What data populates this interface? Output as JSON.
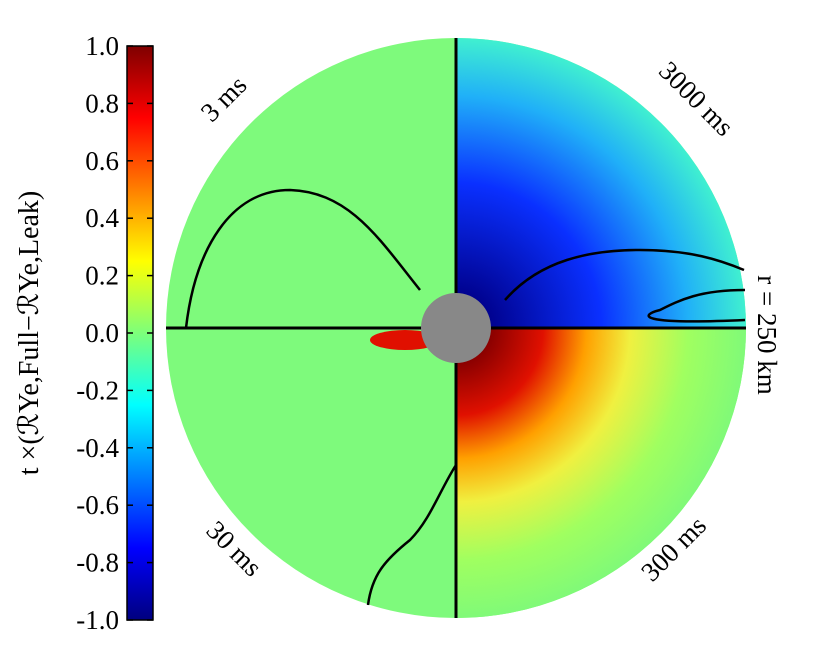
{
  "chart_data": {
    "type": "polar-map",
    "colorbar_label": "t ×(ℛYe,Full−ℛYe,Leak)",
    "clim": [
      -1.0,
      1.0
    ],
    "cticks": [
      {
        "value": 1.0,
        "label": "1.0"
      },
      {
        "value": 0.8,
        "label": "0.8"
      },
      {
        "value": 0.6,
        "label": "0.6"
      },
      {
        "value": 0.4,
        "label": "0.4"
      },
      {
        "value": 0.2,
        "label": "0.2"
      },
      {
        "value": 0.0,
        "label": "0.0"
      },
      {
        "value": -0.2,
        "label": "-0.2"
      },
      {
        "value": -0.4,
        "label": "-0.4"
      },
      {
        "value": -0.6,
        "label": "-0.6"
      },
      {
        "value": -0.8,
        "label": "-0.8"
      },
      {
        "value": -1.0,
        "label": "-1.0"
      }
    ],
    "colormap": "jet",
    "quadrant_labels": [
      "3 ms",
      "3000 ms",
      "30 ms",
      "300 ms"
    ],
    "radius_label": "r = 250 km"
  }
}
